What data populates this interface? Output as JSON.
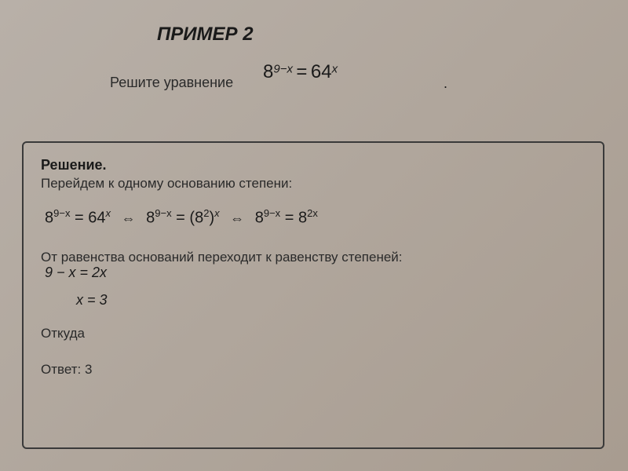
{
  "title": "ПРИМЕР 2",
  "subtitle": "Решите уравнение",
  "main_equation": {
    "left_base": "8",
    "left_exp": "9−x",
    "equals": "=",
    "right_base": "64",
    "right_exp": "x",
    "period": "."
  },
  "solution": {
    "title": "Решение.",
    "step1_text": "Перейдем к одному основанию степени:",
    "step1_equation": {
      "part1_base": "8",
      "part1_exp": "9−x",
      "eq1": "=",
      "part2_base": "64",
      "part2_exp": "x",
      "arrow1": "⇔",
      "part3_base": "8",
      "part3_exp": "9−x",
      "eq2": "=",
      "part4_open": "(8",
      "part4_exp1": "2",
      "part4_close": ")",
      "part4_exp2": "x",
      "arrow2": "⇔",
      "part5_base": "8",
      "part5_exp": "9−x",
      "eq3": "=",
      "part6_base": "8",
      "part6_exp": "2x"
    },
    "step2_text": "От равенства оснований переходит к равенству степеней:",
    "step2_equation": "9 − x = 2x",
    "step3_equation": "x = 3",
    "whence": "Откуда",
    "answer": "Ответ: 3"
  },
  "colors": {
    "text_dark": "#1a1a1a",
    "text_medium": "#2a2a2a",
    "border": "#3a3a3a",
    "bg_start": "#b8b0a8",
    "bg_end": "#a89c90"
  }
}
